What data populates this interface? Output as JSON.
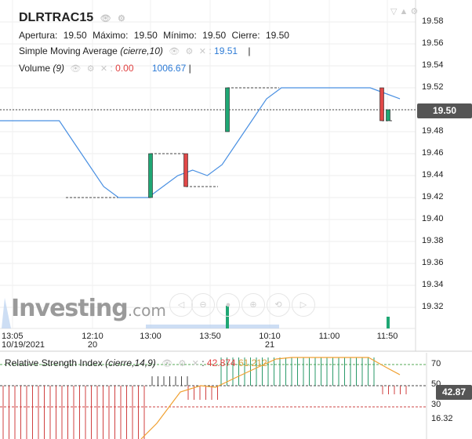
{
  "header": {
    "ticker": "DLRTRAC15",
    "ohlc": [
      {
        "label": "Apertura:",
        "value": "19.50"
      },
      {
        "label": "Máximo:",
        "value": "19.50"
      },
      {
        "label": "Mínimo:",
        "value": "19.50"
      },
      {
        "label": "Cierre:",
        "value": "19.50"
      }
    ],
    "sma": {
      "label": "Simple Moving Average",
      "params": "(cierre,10)",
      "value": "19.51",
      "sep": "|"
    },
    "volume": {
      "label": "Volume",
      "params": "(9)",
      "value_a": "0.00",
      "value_b": "1006.67",
      "sep": "|"
    }
  },
  "current_price": "19.50",
  "watermark": {
    "brand": "Investing",
    "tld": ".com"
  },
  "rsi": {
    "label": "Relative Strength Index",
    "params": "(cierre,14,9)",
    "value_a": "42.874",
    "value_b": "61.212",
    "current": "42.87",
    "axis_labels": [
      "70",
      "50",
      "30",
      "16.32"
    ]
  },
  "colors": {
    "up": "#1fa774",
    "down": "#e04848",
    "sma": "#4a90e2",
    "rsi_signal": "#f0a030",
    "level_line": "#555555"
  },
  "chart_data": {
    "type": "candlestick",
    "title": "DLRTRAC15",
    "ylim": [
      19.28,
      19.6
    ],
    "y_ticks": [
      "19.58",
      "19.56",
      "19.54",
      "19.52",
      "19.50",
      "19.48",
      "19.46",
      "19.44",
      "19.42",
      "19.40",
      "19.38",
      "19.36",
      "19.34",
      "19.32"
    ],
    "x_ticks": [
      {
        "line1": "13:05",
        "line2": "10/19/2021"
      },
      {
        "line1": "12:10",
        "line2": "20"
      },
      {
        "line1": "13:00",
        "line2": ""
      },
      {
        "line1": "13:50",
        "line2": ""
      },
      {
        "line1": "10:10",
        "line2": "21"
      },
      {
        "line1": "11:00",
        "line2": ""
      },
      {
        "line1": "11:50",
        "line2": ""
      }
    ],
    "candles": [
      {
        "open": 19.42,
        "close": 19.46,
        "direction": "up"
      },
      {
        "open": 19.46,
        "close": 19.43,
        "direction": "down"
      },
      {
        "open": 19.48,
        "close": 19.52,
        "direction": "up"
      },
      {
        "open": 19.52,
        "close": 19.49,
        "direction": "down"
      },
      {
        "open": 19.49,
        "close": 19.5,
        "direction": "up"
      }
    ],
    "sma_series": {
      "name": "Simple Moving Average",
      "values": [
        19.49,
        19.49,
        19.49,
        19.49,
        19.49,
        19.47,
        19.45,
        19.43,
        19.42,
        19.42,
        19.42,
        19.43,
        19.44,
        19.445,
        19.44,
        19.45,
        19.47,
        19.49,
        19.51,
        19.52,
        19.52,
        19.52,
        19.52,
        19.52,
        19.52,
        19.52,
        19.515,
        19.51
      ]
    },
    "grid": true,
    "legend": "top-left"
  }
}
